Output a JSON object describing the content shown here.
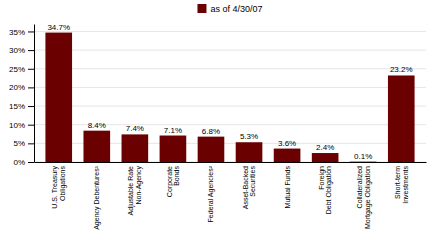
{
  "chart_data": {
    "type": "bar",
    "categories": [
      "U.S. Treasury\nObligations",
      "Agency Debentures¹",
      "Adjustable Rate\nNon-Agency",
      "Corporate\nBonds",
      "Federal Agencies²",
      "Asset-Backed\nSecurities",
      "Mutual Funds",
      "Foreign\nDebt Obligation",
      "Collateralized\nMortgage Obligation",
      "Short-term\nInvestments"
    ],
    "series": [
      {
        "name": "as of 4/30/07",
        "color": "#6B0000",
        "values": [
          34.7,
          8.4,
          7.4,
          7.1,
          6.8,
          5.3,
          3.6,
          2.4,
          0.1,
          23.2
        ],
        "value_labels": [
          "34.7%",
          "8.4%",
          "7.4%",
          "7.1%",
          "6.8%",
          "5.3%",
          "3.6%",
          "2.4%",
          "0.1%",
          "23.2%"
        ]
      }
    ],
    "ylim": [
      0,
      37
    ],
    "yticks": [
      {
        "value": 0,
        "label": "0%"
      },
      {
        "value": 5,
        "label": "5%"
      },
      {
        "value": 10,
        "label": "10%"
      },
      {
        "value": 15,
        "label": "15%"
      },
      {
        "value": 20,
        "label": "20%"
      },
      {
        "value": 25,
        "label": "25%"
      },
      {
        "value": 30,
        "label": "30%"
      },
      {
        "value": 35,
        "label": "35%"
      }
    ],
    "grid": true,
    "legend": "top",
    "data_labels": true
  }
}
